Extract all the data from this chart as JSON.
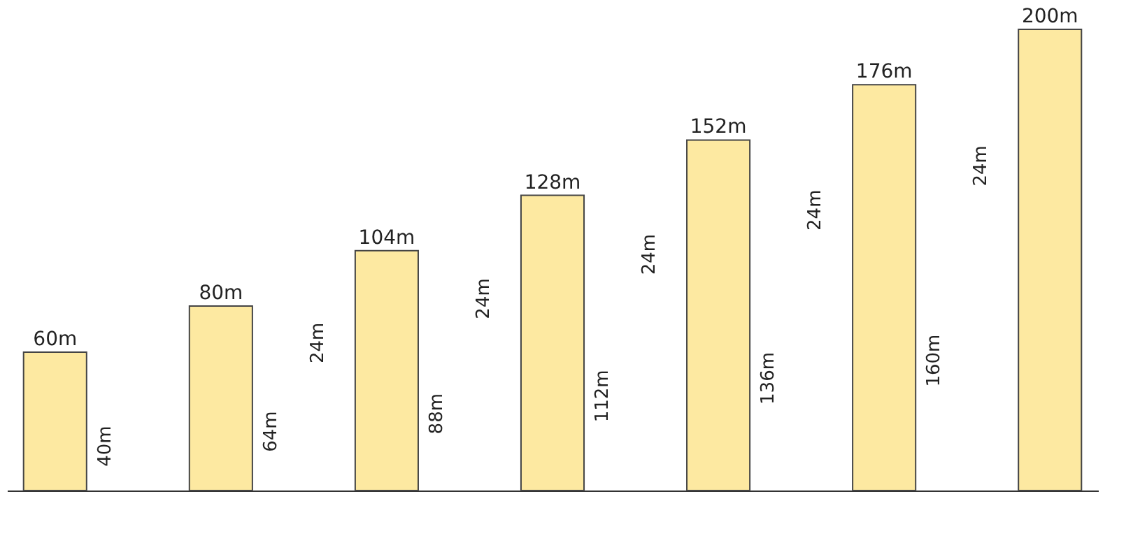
{
  "chart_data": {
    "type": "bar",
    "categories": [
      null,
      null,
      null,
      null,
      null,
      null,
      null
    ],
    "values": [
      60,
      80,
      104,
      128,
      152,
      176,
      200
    ],
    "color": "#fde9a1",
    "data_labels": true,
    "value_labels": [
      "60m",
      "80m",
      "104m",
      "128m",
      "152m",
      "176m",
      "200m"
    ],
    "grid": false,
    "annotations": [
      "40m",
      "64m",
      "88m",
      "112m",
      "136m",
      "160m",
      "24m",
      "24m",
      "24m",
      "24m",
      "24m"
    ]
  }
}
